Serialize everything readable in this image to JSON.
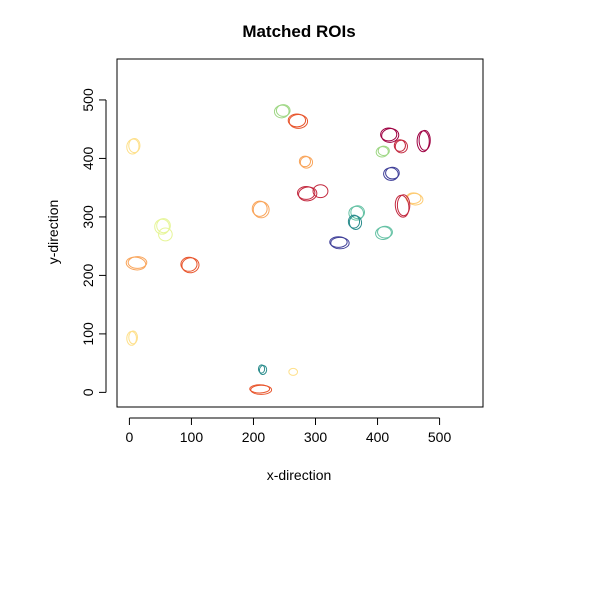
{
  "chart_data": {
    "type": "scatter",
    "title": "Matched ROIs",
    "xlabel": "x-direction",
    "ylabel": "y-direction",
    "xlim": [
      -20,
      570
    ],
    "ylim": [
      -25,
      570
    ],
    "x_ticks": [
      0,
      100,
      200,
      300,
      400,
      500
    ],
    "y_ticks": [
      0,
      100,
      200,
      300,
      400,
      500
    ],
    "grid": false,
    "legend": "none",
    "rois": [
      {
        "cx": 248,
        "cy": 482,
        "rx": 11,
        "ry": 10,
        "color": "#9ED784",
        "rings": 2
      },
      {
        "cx": 270,
        "cy": 465,
        "rx": 14,
        "ry": 11,
        "color": "#E8552C",
        "rings": 2
      },
      {
        "cx": 8,
        "cy": 422,
        "rx": 9,
        "ry": 12,
        "color": "#FEE08B",
        "rings": 2
      },
      {
        "cx": 418,
        "cy": 441,
        "rx": 13,
        "ry": 11,
        "color": "#9E0142",
        "rings": 2
      },
      {
        "cx": 476,
        "cy": 431,
        "rx": 9,
        "ry": 17,
        "color": "#9E0142",
        "rings": 2
      },
      {
        "cx": 436,
        "cy": 422,
        "rx": 9,
        "ry": 10,
        "color": "#C3293F",
        "rings": 2
      },
      {
        "cx": 410,
        "cy": 413,
        "rx": 9,
        "ry": 8,
        "color": "#9ED784",
        "rings": 2
      },
      {
        "cx": 283,
        "cy": 395,
        "rx": 9,
        "ry": 9,
        "color": "#F9A55B",
        "rings": 2
      },
      {
        "cx": 424,
        "cy": 375,
        "rx": 11,
        "ry": 10,
        "color": "#3F3F98",
        "rings": 2
      },
      {
        "cx": 285,
        "cy": 341,
        "rx": 14,
        "ry": 11,
        "color": "#C3293F",
        "rings": 2
      },
      {
        "cx": 308,
        "cy": 344,
        "rx": 12,
        "ry": 11,
        "color": "#C3293F",
        "rings": 1
      },
      {
        "cx": 458,
        "cy": 332,
        "rx": 12,
        "ry": 9,
        "color": "#FDCB72",
        "rings": 2
      },
      {
        "cx": 442,
        "cy": 320,
        "rx": 10,
        "ry": 18,
        "color": "#C3293F",
        "rings": 2
      },
      {
        "cx": 210,
        "cy": 314,
        "rx": 12,
        "ry": 13,
        "color": "#F9A55B",
        "rings": 2
      },
      {
        "cx": 368,
        "cy": 308,
        "rx": 11,
        "ry": 11,
        "color": "#66C2A5",
        "rings": 2
      },
      {
        "cx": 362,
        "cy": 292,
        "rx": 9,
        "ry": 11,
        "color": "#2A8C8C",
        "rings": 2
      },
      {
        "cx": 55,
        "cy": 285,
        "rx": 11,
        "ry": 12,
        "color": "#E6F598",
        "rings": 2
      },
      {
        "cx": 58,
        "cy": 270,
        "rx": 11,
        "ry": 11,
        "color": "#E6F598",
        "rings": 1
      },
      {
        "cx": 412,
        "cy": 274,
        "rx": 12,
        "ry": 10,
        "color": "#66C2A5",
        "rings": 2
      },
      {
        "cx": 337,
        "cy": 257,
        "rx": 14,
        "ry": 9,
        "color": "#3F3F98",
        "rings": 2
      },
      {
        "cx": 13,
        "cy": 222,
        "rx": 15,
        "ry": 10,
        "color": "#F9A55B",
        "rings": 2
      },
      {
        "cx": 96,
        "cy": 219,
        "rx": 13,
        "ry": 12,
        "color": "#E8552C",
        "rings": 2
      },
      {
        "cx": 6,
        "cy": 94,
        "rx": 7,
        "ry": 11,
        "color": "#FEE08B",
        "rings": 2
      },
      {
        "cx": 213,
        "cy": 40,
        "rx": 5,
        "ry": 7,
        "color": "#2A8C8C",
        "rings": 2
      },
      {
        "cx": 264,
        "cy": 35,
        "rx": 7,
        "ry": 6,
        "color": "#FEE08B",
        "rings": 1
      },
      {
        "cx": 210,
        "cy": 6,
        "rx": 16,
        "ry": 7,
        "color": "#E8552C",
        "rings": 2
      }
    ]
  }
}
